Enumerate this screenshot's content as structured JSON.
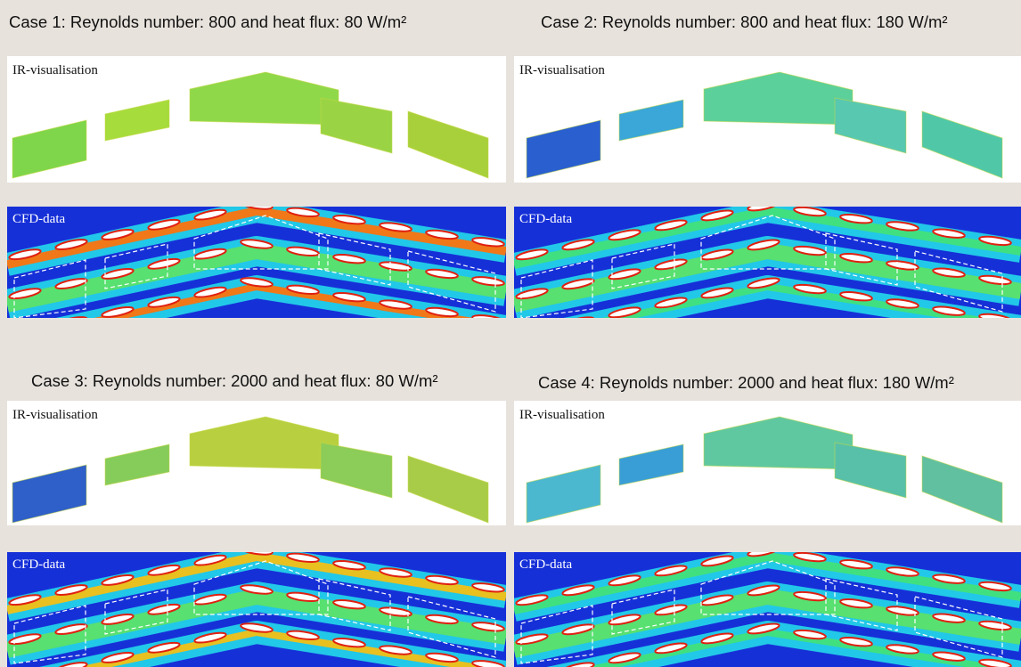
{
  "cases": [
    {
      "title": "Case 1: Reynolds number: 800 and heat flux: 80 W/m²",
      "ir_label": "IR-visualisation",
      "cfd_label": "CFD-data"
    },
    {
      "title": "Case 2: Reynolds number: 800 and heat flux: 180 W/m²",
      "ir_label": "IR-visualisation",
      "cfd_label": "CFD-data"
    },
    {
      "title": "Case 3: Reynolds number: 2000 and heat flux: 80 W/m²",
      "ir_label": "IR-visualisation",
      "cfd_label": "CFD-data"
    },
    {
      "title": "Case 4: Reynolds number: 2000 and heat flux: 180 W/m²",
      "ir_label": "IR-visualisation",
      "cfd_label": "CFD-data"
    }
  ]
}
